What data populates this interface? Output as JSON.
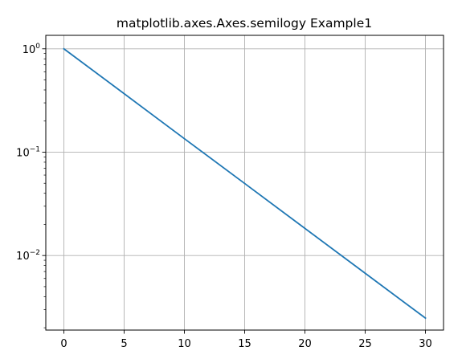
{
  "chart_data": {
    "type": "line",
    "title": "matplotlib.axes.Axes.semilogy Example1",
    "xlabel": "",
    "ylabel": "",
    "yscale": "log",
    "xlim": [
      -1.5,
      31.5
    ],
    "ylim": [
      0.0019,
      1.35
    ],
    "grid": true,
    "x_ticks": [
      0,
      5,
      10,
      15,
      20,
      25,
      30
    ],
    "y_ticks": [
      {
        "value": 1,
        "base": "10",
        "exp": "0"
      },
      {
        "value": 0.1,
        "base": "10",
        "exp": "−1"
      },
      {
        "value": 0.01,
        "base": "10",
        "exp": "−2"
      }
    ],
    "series": [
      {
        "color": "#1f77b4",
        "x": [
          0,
          5,
          10,
          15,
          20,
          25,
          30
        ],
        "y": [
          1.0,
          0.368,
          0.135,
          0.0498,
          0.0183,
          0.00674,
          0.00248
        ]
      }
    ]
  }
}
